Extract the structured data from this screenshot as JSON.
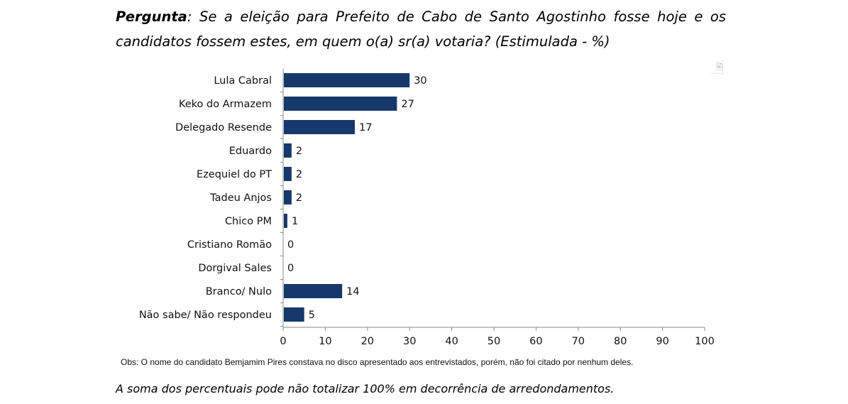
{
  "question": {
    "label": "Pergunta",
    "text": ": Se a eleição para Prefeito de Cabo de Santo Agostinho fosse hoje e os candidatos fossem estes, em quem o(a) sr(a) votaria? (Estimulada - %)"
  },
  "chart_data": {
    "type": "bar",
    "orientation": "horizontal",
    "categories": [
      "Lula Cabral",
      "Keko do Armazem",
      "Delegado Resende",
      "Eduardo",
      "Ezequiel do PT",
      "Tadeu Anjos",
      "Chico PM",
      "Cristiano Romão",
      "Dorgival Sales",
      "Branco/ Nulo",
      "Não sabe/ Não respondeu"
    ],
    "values": [
      30,
      27,
      17,
      2,
      2,
      2,
      1,
      0,
      0,
      14,
      5
    ],
    "xlim": [
      0,
      100
    ],
    "xticks": [
      0,
      10,
      20,
      30,
      40,
      50,
      60,
      70,
      80,
      90,
      100
    ],
    "bar_color": "#17386b",
    "grid": false,
    "legend": "none"
  },
  "obs": "Obs: O nome do candidato Bemjamim Pires constava no disco apresentado aos entrevistados, porém, não foi citado por nenhum deles.",
  "footnote": "A soma dos percentuais pode não totalizar 100% em decorrência de arredondamentos.",
  "icons": {
    "corner": "filter-icon"
  }
}
